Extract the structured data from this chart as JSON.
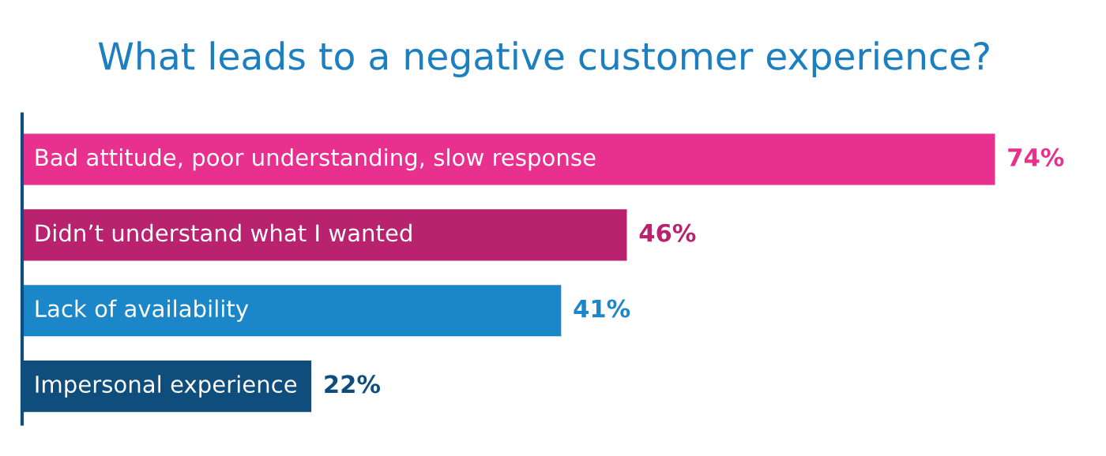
{
  "chart_data": {
    "type": "bar",
    "orientation": "horizontal",
    "title": "What leads to a negative customer experience?",
    "categories": [
      "Bad attitude, poor understanding, slow response",
      "Didn’t understand what I wanted",
      "Lack of availability",
      "Impersonal experience"
    ],
    "values": [
      74,
      46,
      41,
      22
    ],
    "colors": [
      "#e8308e",
      "#b8226f",
      "#1b87c8",
      "#0f4e7c"
    ],
    "value_labels": [
      "74%",
      "46%",
      "41%",
      "22%"
    ]
  }
}
